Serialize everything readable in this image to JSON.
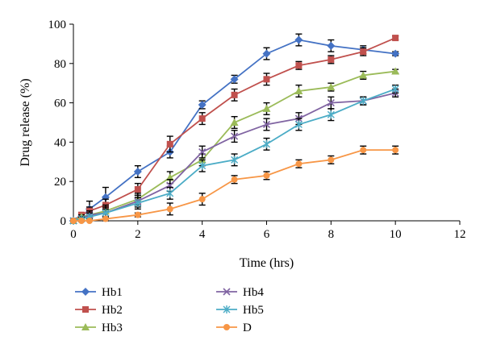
{
  "chart_data": {
    "type": "line",
    "title": "",
    "xlabel": "Time (hrs)",
    "ylabel": "Drug release (%)",
    "xlim": [
      0,
      12
    ],
    "ylim": [
      0,
      100
    ],
    "xticks": [
      "0",
      "2",
      "4",
      "6",
      "8",
      "10",
      "12"
    ],
    "yticks": [
      "0",
      "20",
      "40",
      "60",
      "80",
      "100"
    ],
    "grid": false,
    "error_bars": true,
    "legend_position": "bottom",
    "x": [
      0,
      0.25,
      0.5,
      1,
      2,
      3,
      4,
      5,
      6,
      7,
      8,
      9,
      10
    ],
    "series": [
      {
        "name": "Hb1",
        "color": "#4472C4",
        "marker": "diamond",
        "values": [
          0,
          2,
          6,
          12,
          25,
          35,
          59,
          72,
          85,
          92,
          89,
          87,
          85
        ],
        "errors": [
          0,
          1,
          4,
          5,
          3,
          3,
          2,
          2,
          3,
          3,
          3,
          2,
          1
        ]
      },
      {
        "name": "Hb2",
        "color": "#C0504D",
        "marker": "square",
        "values": [
          0,
          3,
          5,
          8,
          16,
          39,
          52,
          64,
          72,
          79,
          82,
          86,
          93
        ],
        "errors": [
          0,
          1,
          2,
          3,
          3,
          4,
          3,
          3,
          3,
          2,
          2,
          2,
          1
        ]
      },
      {
        "name": "Hb3",
        "color": "#9BBB59",
        "marker": "triangle",
        "values": [
          0,
          2,
          3,
          5,
          11,
          22,
          31,
          50,
          57,
          66,
          68,
          74,
          76
        ],
        "errors": [
          0,
          1,
          2,
          3,
          3,
          3,
          3,
          3,
          3,
          3,
          2,
          2,
          1
        ]
      },
      {
        "name": "Hb4",
        "color": "#8064A2",
        "marker": "x",
        "values": [
          0,
          1,
          3,
          4,
          10,
          18,
          35,
          43,
          49,
          52,
          60,
          61,
          65
        ],
        "errors": [
          0,
          1,
          2,
          3,
          3,
          3,
          3,
          3,
          3,
          3,
          3,
          2,
          2
        ]
      },
      {
        "name": "Hb5",
        "color": "#4BACC6",
        "marker": "asterisk",
        "values": [
          0,
          1,
          2,
          4,
          9,
          14,
          28,
          31,
          39,
          49,
          54,
          61,
          67
        ],
        "errors": [
          0,
          1,
          2,
          2,
          3,
          3,
          3,
          3,
          3,
          3,
          3,
          2,
          2
        ]
      },
      {
        "name": "D",
        "color": "#F79646",
        "marker": "circle",
        "values": [
          0,
          0,
          0,
          1,
          3,
          6,
          11,
          21,
          23,
          29,
          31,
          36,
          36
        ],
        "errors": [
          0,
          0,
          0,
          1,
          1,
          3,
          3,
          2,
          2,
          2,
          2,
          2,
          2
        ]
      }
    ]
  }
}
